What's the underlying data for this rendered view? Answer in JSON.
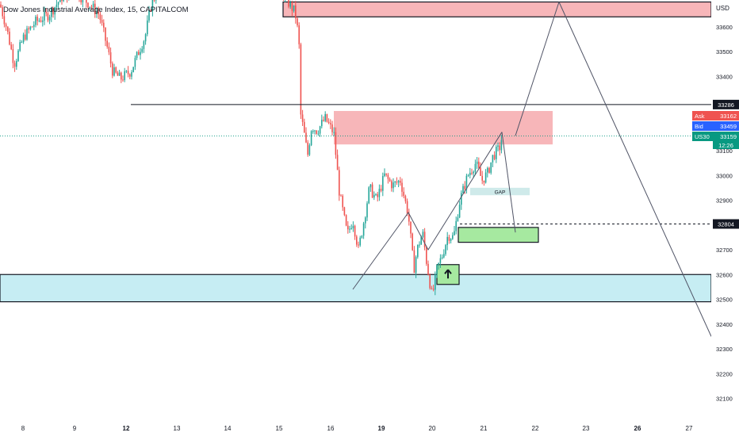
{
  "header": {
    "title": "Dow Jones Industrial Average Index, 15, CAPITALCOM"
  },
  "colors": {
    "bull": "#26a69a",
    "bear": "#ef5350",
    "supply_zone": "#f7b6b9",
    "demand_zone": "#c6edf3",
    "green_box": "#a6e9a0",
    "gap_box": "#cfeaea",
    "ask_badge": "#ef5350",
    "bid_badge": "#2962ff",
    "price_badge": "#089981",
    "dark_badge": "#131722"
  },
  "chart_data": {
    "type": "candlestick",
    "title": "Dow Jones Industrial Average Index, 15, CAPITALCOM",
    "currency": "USD",
    "y_ticks": [
      32100,
      32200,
      32300,
      32400,
      32500,
      32600,
      32700,
      32800,
      32900,
      33000,
      33100,
      33400,
      33500,
      33600
    ],
    "ylim": [
      32050,
      33700
    ],
    "x_ticks": [
      {
        "label": "8",
        "bold": false
      },
      {
        "label": "9",
        "bold": false
      },
      {
        "label": "12",
        "bold": true
      },
      {
        "label": "13",
        "bold": false
      },
      {
        "label": "14",
        "bold": false
      },
      {
        "label": "15",
        "bold": false
      },
      {
        "label": "16",
        "bold": false
      },
      {
        "label": "19",
        "bold": true
      },
      {
        "label": "20",
        "bold": false
      },
      {
        "label": "21",
        "bold": false
      },
      {
        "label": "22",
        "bold": false
      },
      {
        "label": "23",
        "bold": false
      },
      {
        "label": "26",
        "bold": true
      },
      {
        "label": "27",
        "bold": false
      }
    ],
    "horizontal_levels": [
      {
        "name": "resistance",
        "value": 33286,
        "label": "33286",
        "style": "solid"
      },
      {
        "name": "current",
        "value": 32804,
        "label": "32804",
        "style": "dashed"
      }
    ],
    "price_badges": {
      "ask": {
        "label": "Ask",
        "value": "33162"
      },
      "bid": {
        "label": "Bid",
        "value": "33459"
      },
      "last": {
        "label": "US30",
        "value": "33159",
        "countdown": "12:26"
      }
    },
    "zones": [
      {
        "name": "supply-top",
        "y_range": [
          33640,
          33700
        ]
      },
      {
        "name": "supply-mid",
        "y_range": [
          33125,
          33260
        ]
      },
      {
        "name": "demand-blue",
        "y_range": [
          32490,
          32600
        ]
      },
      {
        "name": "green-target",
        "y_range": [
          32730,
          32790
        ]
      },
      {
        "name": "green-entry",
        "y_range": [
          32560,
          32640
        ],
        "icon": "up-arrow"
      },
      {
        "name": "gap",
        "y_range": [
          32920,
          32950
        ],
        "label": "GAP"
      }
    ],
    "projection_lines": [
      {
        "name": "up-leg",
        "points": [
          [
            650,
            33160
          ],
          [
            705,
            33700
          ]
        ]
      },
      {
        "name": "down-leg",
        "points": [
          [
            705,
            33700
          ],
          [
            897,
            32350
          ]
        ]
      },
      {
        "name": "dip-leg",
        "points": [
          [
            633,
            33175
          ],
          [
            650,
            32770
          ]
        ]
      }
    ],
    "pattern_lines": [
      {
        "name": "pattern",
        "points": [
          [
            445,
            32540
          ],
          [
            515,
            32850
          ],
          [
            540,
            32700
          ],
          [
            633,
            33175
          ]
        ]
      }
    ]
  }
}
